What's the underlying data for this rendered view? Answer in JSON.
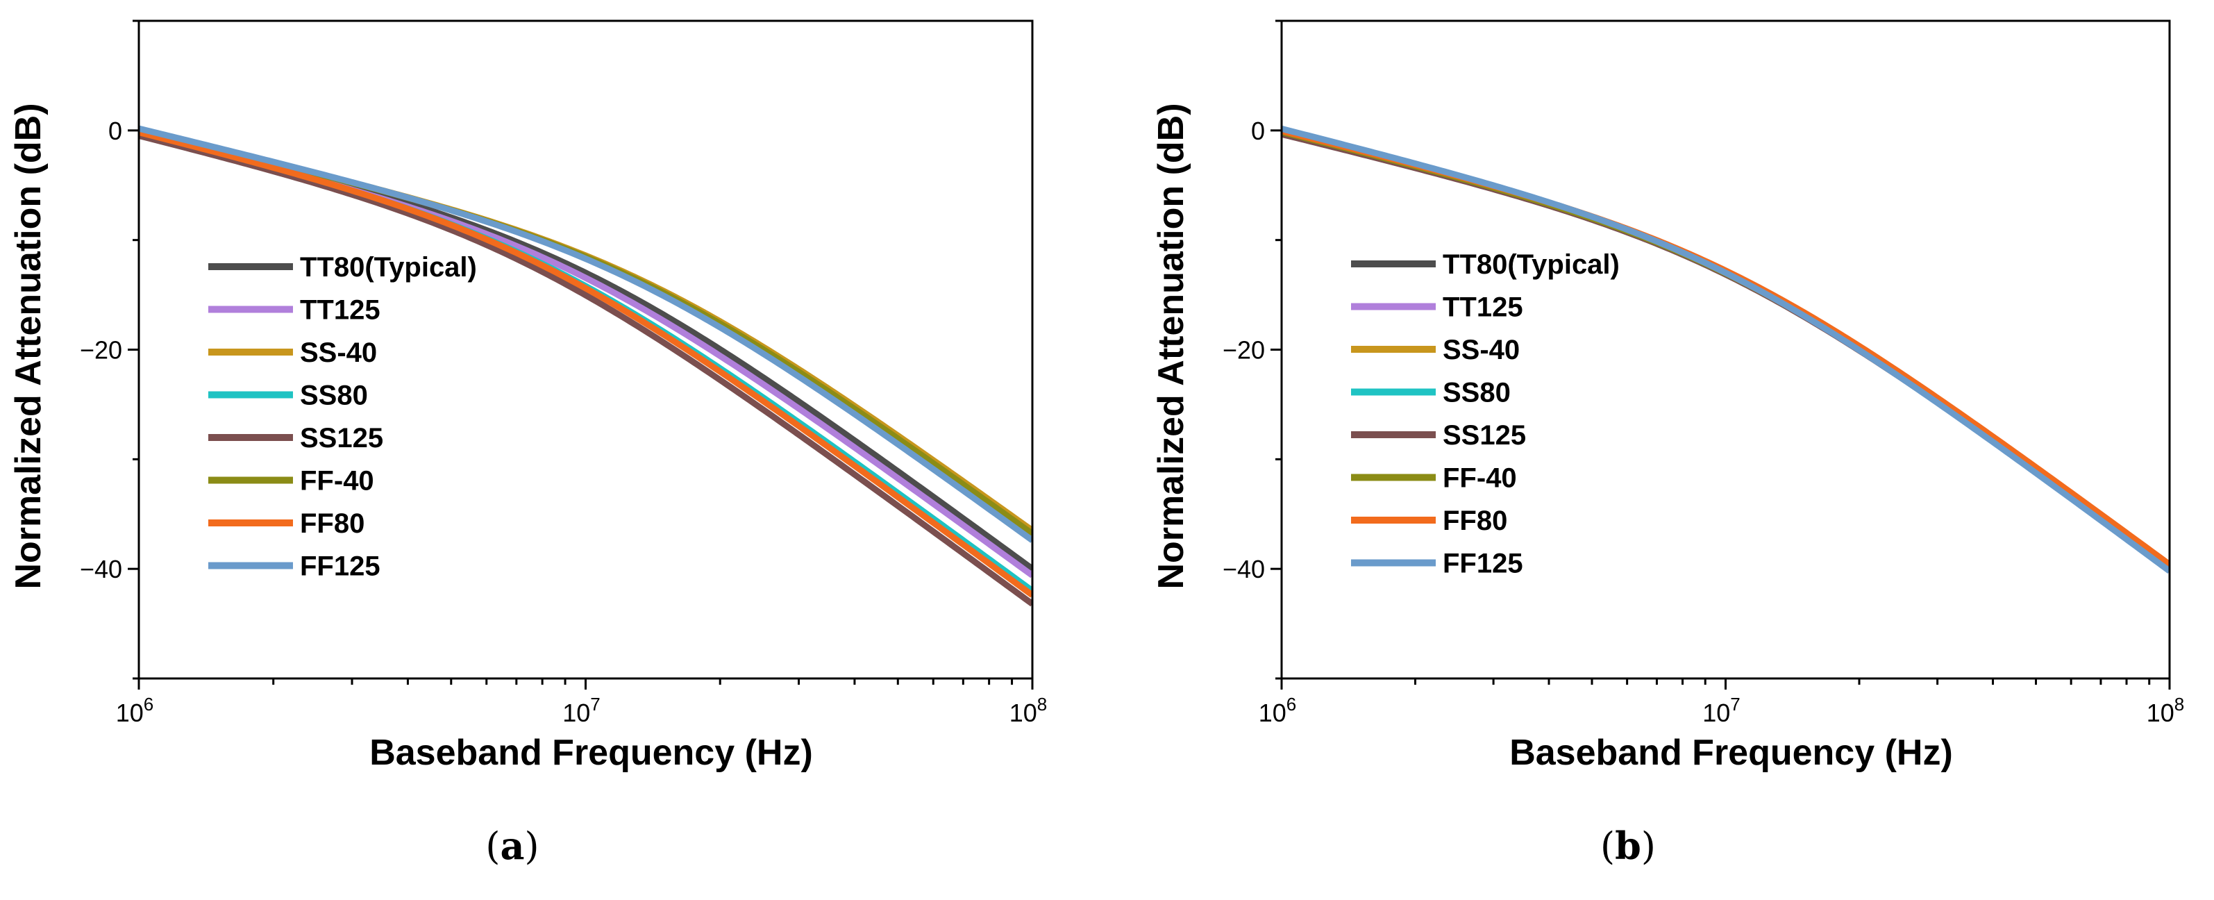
{
  "chart_data": [
    {
      "type": "line",
      "panel": "(a)",
      "xlabel": "Baseband Frequency (Hz)",
      "ylabel": "Normalized Attenuation (dB)",
      "x_scale": "log",
      "xlim": [
        1000000,
        100000000
      ],
      "ylim": [
        -50,
        10
      ],
      "x_ticks": [
        {
          "value": 1000000,
          "base": "10",
          "exp": "6"
        },
        {
          "value": 10000000,
          "base": "10",
          "exp": "7"
        },
        {
          "value": 100000000,
          "base": "10",
          "exp": "8"
        }
      ],
      "y_ticks": [
        {
          "value": 0,
          "label": "0"
        },
        {
          "value": -20,
          "label": "−20"
        },
        {
          "value": -40,
          "label": "−40"
        }
      ],
      "legend_position": "center-left",
      "series": [
        {
          "name": "TT80(Typical)",
          "color": "#4d4d4d",
          "cutoff_hz": 10000000,
          "low_freq_db": 0.0,
          "end_db": -40.0
        },
        {
          "name": "TT125",
          "color": "#b07fdb",
          "cutoff_hz": 9300000,
          "low_freq_db": -0.3,
          "end_db": -40.6
        },
        {
          "name": "SS-40",
          "color": "#c8961d",
          "cutoff_hz": 13500000,
          "low_freq_db": 0.0,
          "end_db": -36.5
        },
        {
          "name": "SS80",
          "color": "#1fc3c3",
          "cutoff_hz": 8000000,
          "low_freq_db": -0.2,
          "end_db": -42.0
        },
        {
          "name": "SS125",
          "color": "#7b4f4f",
          "cutoff_hz": 7200000,
          "low_freq_db": -0.4,
          "end_db": -43.2
        },
        {
          "name": "FF-40",
          "color": "#8b8c16",
          "cutoff_hz": 13200000,
          "low_freq_db": 0.0,
          "end_db": -36.8
        },
        {
          "name": "FF80",
          "color": "#f26b1d",
          "cutoff_hz": 7700000,
          "low_freq_db": -0.1,
          "end_db": -42.4
        },
        {
          "name": "FF125",
          "color": "#6a9bcb",
          "cutoff_hz": 12800000,
          "low_freq_db": 0.2,
          "end_db": -37.4
        }
      ]
    },
    {
      "type": "line",
      "panel": "(b)",
      "xlabel": "Baseband Frequency (Hz)",
      "ylabel": "Normalized Attenuation (dB)",
      "x_scale": "log",
      "xlim": [
        1000000,
        100000000
      ],
      "ylim": [
        -50,
        10
      ],
      "x_ticks": [
        {
          "value": 1000000,
          "base": "10",
          "exp": "6"
        },
        {
          "value": 10000000,
          "base": "10",
          "exp": "7"
        },
        {
          "value": 100000000,
          "base": "10",
          "exp": "8"
        }
      ],
      "y_ticks": [
        {
          "value": 0,
          "label": "0"
        },
        {
          "value": -20,
          "label": "−20"
        },
        {
          "value": -40,
          "label": "−40"
        }
      ],
      "legend_position": "center-left",
      "series": [
        {
          "name": "TT80(Typical)",
          "color": "#4d4d4d",
          "cutoff_hz": 10000000,
          "low_freq_db": 0.0,
          "end_db": -40.0
        },
        {
          "name": "TT125",
          "color": "#b07fdb",
          "cutoff_hz": 10050000,
          "low_freq_db": -0.1,
          "end_db": -40.0
        },
        {
          "name": "SS-40",
          "color": "#c8961d",
          "cutoff_hz": 10100000,
          "low_freq_db": -0.2,
          "end_db": -39.9
        },
        {
          "name": "SS80",
          "color": "#1fc3c3",
          "cutoff_hz": 9950000,
          "low_freq_db": 0.0,
          "end_db": -40.1
        },
        {
          "name": "SS125",
          "color": "#7b4f4f",
          "cutoff_hz": 10000000,
          "low_freq_db": -0.3,
          "end_db": -40.0
        },
        {
          "name": "FF-40",
          "color": "#8b8c16",
          "cutoff_hz": 10050000,
          "low_freq_db": -0.1,
          "end_db": -40.0
        },
        {
          "name": "FF80",
          "color": "#f26b1d",
          "cutoff_hz": 10300000,
          "low_freq_db": 0.0,
          "end_db": -39.6
        },
        {
          "name": "FF125",
          "color": "#6a9bcb",
          "cutoff_hz": 9900000,
          "low_freq_db": 0.2,
          "end_db": -40.2
        }
      ]
    }
  ]
}
